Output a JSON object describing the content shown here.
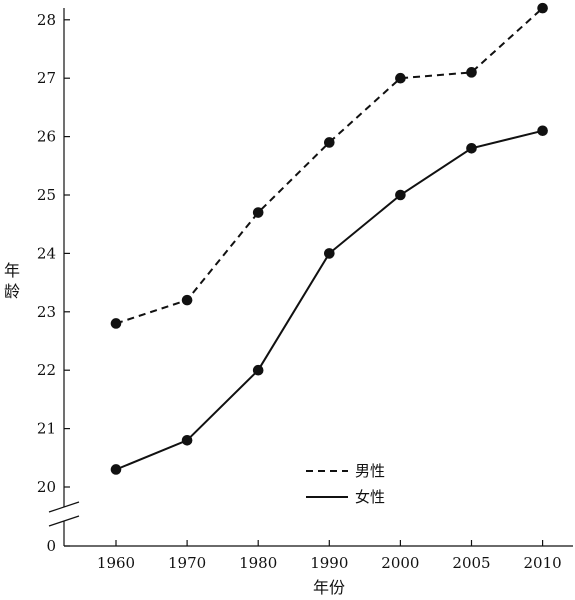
{
  "chart_data": {
    "type": "line",
    "title": "",
    "xlabel": "年份",
    "ylabel": "年龄",
    "categories": [
      "1960",
      "1970",
      "1980",
      "1990",
      "2000",
      "2005",
      "2010"
    ],
    "y_ticks": [
      "28",
      "27",
      "26",
      "25",
      "24",
      "23",
      "22",
      "21",
      "20"
    ],
    "y_zero_label": "0",
    "ylim": [
      20,
      28
    ],
    "axis_break": true,
    "grid": false,
    "legend_position": "bottom-right",
    "series": [
      {
        "name": "男性",
        "style": "dashed",
        "values": [
          22.8,
          23.2,
          24.7,
          25.9,
          27.0,
          27.1,
          28.2
        ]
      },
      {
        "name": "女性",
        "style": "solid",
        "values": [
          20.3,
          20.8,
          22.0,
          24.0,
          25.0,
          25.8,
          26.1
        ]
      }
    ]
  }
}
